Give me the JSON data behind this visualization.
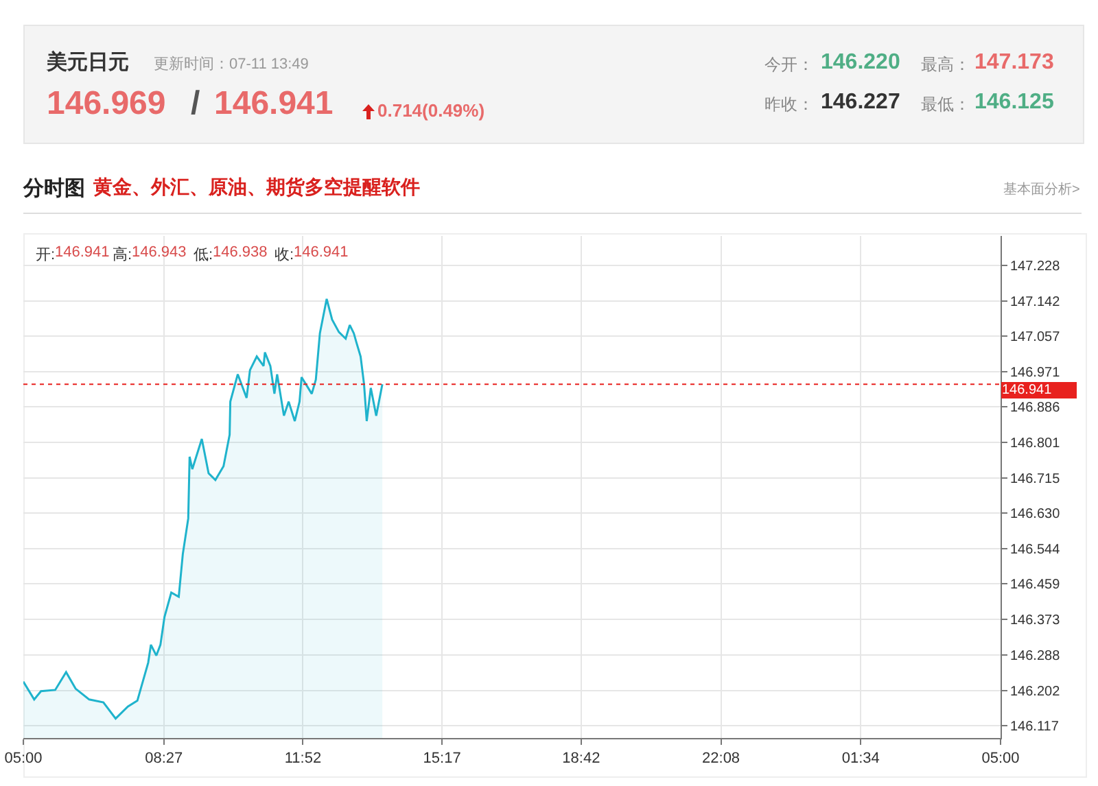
{
  "chart_data": {
    "type": "area",
    "title": "美元日元",
    "subtitle": "更新时间：07-11 13:49",
    "annotations": [
      "146.969",
      "/",
      "146.941",
      "0.714(0.49%)",
      "今开：",
      "146.220",
      "最高：",
      "147.173",
      "昨收：",
      "146.227",
      "最低：",
      "146.125",
      "分时图",
      "黄金、外汇、原油、期货多空提醒软件",
      "基本面分析>",
      "开:",
      "146.941",
      "高:",
      "146.943",
      "低:",
      "146.938",
      "收:",
      "146.941"
    ],
    "x": [
      "--07-11T05:00",
      "--07-11T05:16",
      "--07-11T05:26",
      "--07-11T05:47",
      "--07-11T06:03",
      "--07-11T06:17",
      "--07-11T06:37",
      "--07-11T06:58",
      "--07-11T07:16",
      "--07-11T07:34",
      "--07-11T07:48",
      "--07-11T08:04",
      "--07-11T08:08",
      "--07-11T08:16",
      "--07-11T08:22",
      "--07-11T08:28",
      "--07-11T08:38",
      "--07-11T08:49",
      "--07-11T08:55",
      "--07-11T09:03",
      "--07-11T09:05",
      "--07-11T09:09",
      "--07-11T09:23",
      "--07-11T09:33",
      "--07-11T09:43",
      "--07-11T09:55",
      "--07-11T10:04",
      "--07-11T10:05",
      "--07-11T10:16",
      "--07-11T10:29",
      "--07-11T10:34",
      "--07-11T10:44",
      "--07-11T10:54",
      "--07-11T10:56",
      "--07-11T11:04",
      "--07-11T11:10",
      "--07-11T11:14",
      "--07-11T11:24",
      "--07-11T11:31",
      "--07-11T11:40",
      "--07-11T11:47",
      "--07-11T11:50",
      "--07-11T11:56",
      "--07-11T12:05",
      "--07-11T12:11",
      "--07-11T12:17",
      "--07-11T12:27",
      "--07-11T12:35",
      "--07-11T12:45",
      "--07-11T12:55",
      "--07-11T13:01",
      "--07-11T13:07",
      "--07-11T13:11",
      "--07-11T13:17",
      "--07-11T13:22",
      "--07-11T13:26",
      "--07-11T13:32",
      "--07-11T13:40",
      "--07-11T13:49"
    ],
    "series": [
      {
        "color": "#1fb3cc",
        "values": [
          146.223,
          146.18,
          146.2,
          146.203,
          146.246,
          146.206,
          146.18,
          146.173,
          146.134,
          146.163,
          146.177,
          146.269,
          146.312,
          146.286,
          146.312,
          146.379,
          146.438,
          146.428,
          146.531,
          146.617,
          146.766,
          146.736,
          146.809,
          146.726,
          146.71,
          146.743,
          146.819,
          146.899,
          146.965,
          146.908,
          146.975,
          147.008,
          146.985,
          147.018,
          146.985,
          146.918,
          146.965,
          146.865,
          146.899,
          146.852,
          146.899,
          146.958,
          146.942,
          146.918,
          146.952,
          147.064,
          147.147,
          147.097,
          147.067,
          147.051,
          147.084,
          147.064,
          147.041,
          147.008,
          146.942,
          146.852,
          146.932,
          146.865,
          146.941
        ]
      }
    ],
    "xlim": [
      "--07-11T05:00",
      "--07-12T05:00"
    ],
    "xticks": [
      {
        "value": "--07-11T05:00",
        "label": "05:00"
      },
      {
        "value": "--07-11T08:27",
        "label": "08:27"
      },
      {
        "value": "--07-11T11:52",
        "label": "11:52"
      },
      {
        "value": "--07-11T15:17",
        "label": "15:17"
      },
      {
        "value": "--07-11T18:42",
        "label": "18:42"
      },
      {
        "value": "--07-11T22:08",
        "label": "22:08"
      },
      {
        "value": "--07-12T01:34",
        "label": "01:34"
      },
      {
        "value": "--07-12T05:00",
        "label": "05:00"
      }
    ],
    "ylim": [
      146.087,
      147.299
    ],
    "yticks": [
      146.117,
      146.202,
      146.288,
      146.373,
      146.459,
      146.544,
      {
        "value": 146.63,
        "label": "146.630"
      },
      146.715,
      146.801,
      146.886,
      146.971,
      147.057,
      147.142,
      147.228
    ],
    "ref_lines": [
      {
        "axis": "y",
        "value": 146.941,
        "label": "146.941",
        "color": "#e8211e",
        "line_style": "dotted"
      }
    ],
    "grid": true
  }
}
